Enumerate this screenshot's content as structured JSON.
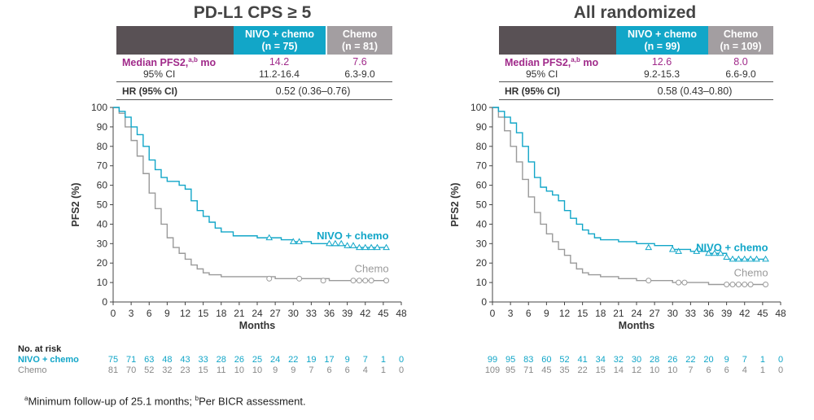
{
  "panels": [
    {
      "title": "PD-L1 CPS ≥ 5",
      "nivo_header": {
        "arm": "NIVO + chemo",
        "n": "(n = 75)"
      },
      "chemo_header": {
        "arm": "Chemo",
        "n": "(n = 81)"
      },
      "median_label": "Median PFS2,",
      "median_sup": "a,b",
      "median_unit": "mo",
      "nivo_median": "14.2",
      "chemo_median": "7.6",
      "ci_label": "95% CI",
      "nivo_ci": "11.2-16.4",
      "chemo_ci": "6.3-9.0",
      "hr_label": "HR (95% CI)",
      "hr_value": "0.52 (0.36–0.76)",
      "risk_nivo": [
        "75",
        "71",
        "63",
        "48",
        "43",
        "33",
        "28",
        "26",
        "25",
        "24",
        "22",
        "19",
        "17",
        "9",
        "7",
        "1",
        "0"
      ],
      "risk_chemo": [
        "81",
        "70",
        "52",
        "32",
        "23",
        "15",
        "11",
        "10",
        "10",
        "9",
        "9",
        "7",
        "6",
        "6",
        "4",
        "1",
        "0"
      ]
    },
    {
      "title": "All randomized",
      "nivo_header": {
        "arm": "NIVO + chemo",
        "n": "(n = 99)"
      },
      "chemo_header": {
        "arm": "Chemo",
        "n": "(n = 109)"
      },
      "median_label": "Median PFS2,",
      "median_sup": "a,b",
      "median_unit": "mo",
      "nivo_median": "12.6",
      "chemo_median": "8.0",
      "ci_label": "95% CI",
      "nivo_ci": "9.2-15.3",
      "chemo_ci": "6.6-9.0",
      "hr_label": "HR (95% CI)",
      "hr_value": "0.58 (0.43–0.80)",
      "risk_nivo": [
        "99",
        "95",
        "83",
        "60",
        "52",
        "41",
        "34",
        "32",
        "30",
        "28",
        "26",
        "22",
        "20",
        "9",
        "7",
        "1",
        "0"
      ],
      "risk_chemo": [
        "109",
        "95",
        "71",
        "45",
        "35",
        "22",
        "15",
        "14",
        "12",
        "10",
        "10",
        "7",
        "6",
        "6",
        "4",
        "1",
        "0"
      ]
    }
  ],
  "risk_title": "No. at risk",
  "risk_nivo_label": "NIVO + chemo",
  "risk_chemo_label": "Chemo",
  "footnote_a": "a",
  "footnote_text1": "Minimum follow-up of 25.1 months; ",
  "footnote_b": "b",
  "footnote_text2": "Per BICR assessment.",
  "colors": {
    "nivo": "#12a6c8",
    "chemo": "#9a9a9a",
    "median": "#a02a8a"
  },
  "chart_data": [
    {
      "type": "line",
      "title": "PD-L1 CPS ≥ 5",
      "xlabel": "Months",
      "ylabel": "PFS2 (%)",
      "xlim": [
        0,
        48
      ],
      "ylim": [
        0,
        100
      ],
      "xticks": [
        0,
        3,
        6,
        9,
        12,
        15,
        18,
        21,
        24,
        27,
        30,
        33,
        36,
        39,
        42,
        45,
        48
      ],
      "yticks": [
        0,
        10,
        20,
        30,
        40,
        50,
        60,
        70,
        80,
        90,
        100
      ],
      "series": [
        {
          "name": "NIVO + chemo",
          "x": [
            0,
            1,
            2,
            3,
            4,
            5,
            6,
            7,
            8,
            9,
            10,
            11,
            12,
            13,
            14,
            15,
            16,
            17,
            18,
            20,
            22,
            24,
            26,
            28,
            30,
            33,
            36,
            39,
            42,
            45.5
          ],
          "y": [
            100,
            98,
            95,
            90,
            86,
            80,
            73,
            68,
            64,
            62,
            62,
            60,
            58,
            52,
            47,
            44,
            41,
            38,
            36,
            34,
            34,
            33,
            33,
            32,
            31,
            30,
            29,
            28,
            28,
            28
          ],
          "censored_x": [
            26,
            30,
            31,
            36,
            37,
            38,
            39,
            40,
            41,
            42,
            43,
            44,
            45.5
          ],
          "censored_y": [
            33,
            31,
            31,
            30,
            30,
            30,
            29,
            29,
            28,
            28,
            28,
            28,
            28
          ]
        },
        {
          "name": "Chemo",
          "x": [
            0,
            1,
            2,
            3,
            4,
            5,
            6,
            7,
            8,
            9,
            10,
            11,
            12,
            13,
            14,
            15,
            16,
            17,
            18,
            21,
            24,
            27,
            30,
            33,
            36,
            39,
            42,
            45.5
          ],
          "y": [
            100,
            97,
            90,
            83,
            75,
            66,
            56,
            48,
            40,
            33,
            28,
            25,
            22,
            19,
            17,
            15,
            14,
            14,
            13,
            13,
            13,
            12,
            12,
            12,
            11,
            11,
            11,
            11
          ],
          "censored_x": [
            26,
            31,
            35,
            40,
            41,
            42,
            43,
            45.5
          ],
          "censored_y": [
            12,
            12,
            11,
            11,
            11,
            11,
            11,
            11
          ]
        }
      ]
    },
    {
      "type": "line",
      "title": "All randomized",
      "xlabel": "Months",
      "ylabel": "PFS2 (%)",
      "xlim": [
        0,
        48
      ],
      "ylim": [
        0,
        100
      ],
      "xticks": [
        0,
        3,
        6,
        9,
        12,
        15,
        18,
        21,
        24,
        27,
        30,
        33,
        36,
        39,
        42,
        45,
        48
      ],
      "yticks": [
        0,
        10,
        20,
        30,
        40,
        50,
        60,
        70,
        80,
        90,
        100
      ],
      "series": [
        {
          "name": "NIVO + chemo",
          "x": [
            0,
            1,
            2,
            3,
            4,
            5,
            6,
            7,
            8,
            9,
            10,
            11,
            12,
            13,
            14,
            15,
            16,
            17,
            18,
            21,
            24,
            27,
            30,
            33,
            36,
            39,
            42,
            45.5
          ],
          "y": [
            100,
            98,
            95,
            92,
            87,
            80,
            72,
            64,
            59,
            57,
            55,
            52,
            47,
            43,
            40,
            37,
            35,
            33,
            32,
            31,
            30,
            29,
            27,
            26,
            25,
            22,
            22,
            22
          ],
          "censored_x": [
            26,
            30,
            31,
            34,
            36,
            37,
            38,
            39,
            40,
            41,
            42,
            43,
            44,
            45.5
          ],
          "censored_y": [
            28,
            27,
            26,
            26,
            25,
            25,
            25,
            23,
            22,
            22,
            22,
            22,
            22,
            22
          ]
        },
        {
          "name": "Chemo",
          "x": [
            0,
            1,
            2,
            3,
            4,
            5,
            6,
            7,
            8,
            9,
            10,
            11,
            12,
            13,
            14,
            15,
            16,
            17,
            18,
            21,
            24,
            27,
            30,
            33,
            36,
            39,
            42,
            45.5
          ],
          "y": [
            100,
            95,
            88,
            80,
            72,
            63,
            54,
            46,
            40,
            35,
            31,
            27,
            24,
            20,
            17,
            15,
            14,
            14,
            13,
            12,
            11,
            11,
            10,
            10,
            9,
            9,
            9,
            9
          ],
          "censored_x": [
            26,
            31,
            32,
            39,
            40,
            41,
            42,
            43,
            45.5
          ],
          "censored_y": [
            11,
            10,
            10,
            9,
            9,
            9,
            9,
            9,
            9
          ]
        }
      ]
    }
  ]
}
